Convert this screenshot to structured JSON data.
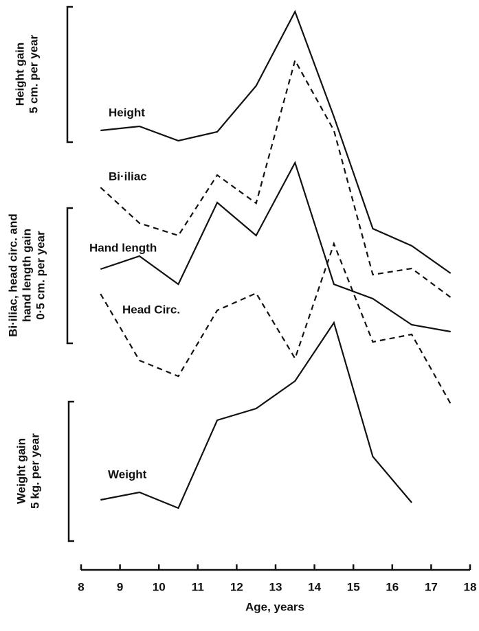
{
  "chart_data": {
    "type": "line",
    "x": [
      8.5,
      9.5,
      10.5,
      11.5,
      12.5,
      13.5,
      14.5,
      15.5,
      16.5,
      17.5
    ],
    "series": [
      {
        "name": "Height",
        "color": "#111",
        "dash": false,
        "values": [
          545,
          551,
          530,
          543,
          610,
          718,
          565,
          402,
          377,
          337
        ]
      },
      {
        "name": "Bi·iliac",
        "color": "#111",
        "dash": true,
        "values": [
          462,
          410,
          392,
          480,
          439,
          647,
          545,
          335,
          344,
          302
        ]
      },
      {
        "name": "Hand length",
        "color": "#111",
        "dash": false,
        "values": [
          343,
          362,
          321,
          440,
          392,
          498,
          321,
          300,
          262,
          252
        ]
      },
      {
        "name": "Head Circ.",
        "color": "#111",
        "dash": true,
        "values": [
          307,
          210,
          187,
          283,
          308,
          213,
          380,
          237,
          248,
          147
        ]
      },
      {
        "name": "Weight",
        "color": "#111",
        "dash": false,
        "values": [
          7,
          18,
          -5,
          123,
          140,
          180,
          265,
          70,
          3,
          null
        ]
      }
    ],
    "xlim": [
      8,
      18
    ],
    "xticks": [
      8,
      9,
      10,
      11,
      12,
      13,
      14,
      15,
      16,
      17,
      18
    ],
    "ylim": [
      0,
      725
    ],
    "x_label": "Age, years",
    "scale_labels": [
      [
        "Height gain",
        "5 cm. per year"
      ],
      [
        "Bi·iliac, head circ. and",
        "hand length gain",
        "0·5 cm. per year"
      ],
      [
        "Weight gain",
        "5 kg. per year"
      ]
    ]
  }
}
